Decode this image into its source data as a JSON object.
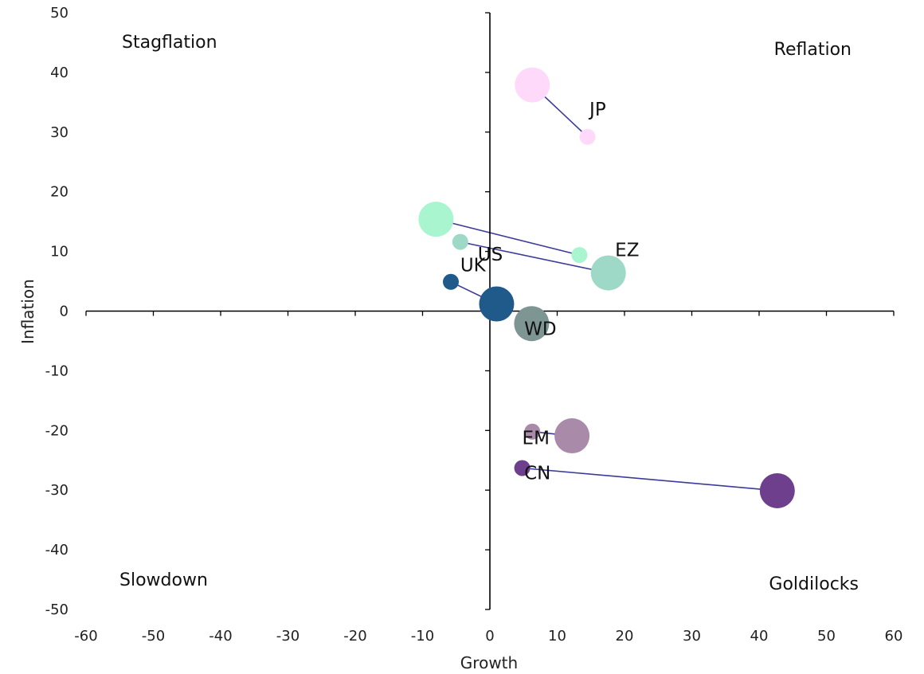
{
  "chart_data": {
    "type": "scatter",
    "subtype": "bubble-trajectory",
    "xlabel": "Growth",
    "ylabel": "Inflation",
    "xlim": [
      -60,
      60
    ],
    "ylim": [
      -50,
      50
    ],
    "xticks": [
      -60,
      -50,
      -40,
      -30,
      -20,
      -10,
      0,
      10,
      20,
      30,
      40,
      50,
      60
    ],
    "yticks": [
      -50,
      -40,
      -30,
      -20,
      -10,
      0,
      10,
      20,
      30,
      40,
      50
    ],
    "grid": false,
    "connector_color": "#3b3b9a",
    "quadrant_labels": [
      {
        "text": "Stagflation",
        "position": "top-left"
      },
      {
        "text": "Reflation",
        "position": "top-right"
      },
      {
        "text": "Slowdown",
        "position": "bottom-left"
      },
      {
        "text": "Goldilocks",
        "position": "bottom-right"
      }
    ],
    "series": [
      {
        "name": "JP",
        "color": "#ffd9fa",
        "points": [
          {
            "x": 6.3,
            "y": 37.9,
            "size": "large"
          },
          {
            "x": 14.5,
            "y": 29.2,
            "size": "small"
          }
        ]
      },
      {
        "name": "EZ",
        "color": "#a8f5d0",
        "points": [
          {
            "x": -8.0,
            "y": 15.4,
            "size": "large"
          },
          {
            "x": 13.3,
            "y": 9.4,
            "size": "small"
          }
        ]
      },
      {
        "name": "US",
        "color": "#9dd9c6",
        "points": [
          {
            "x": -4.4,
            "y": 11.6,
            "size": "small"
          },
          {
            "x": 17.6,
            "y": 6.4,
            "size": "large"
          }
        ]
      },
      {
        "name": "UK",
        "color": "#1f5a8a",
        "points": [
          {
            "x": -5.8,
            "y": 4.9,
            "size": "small"
          },
          {
            "x": 1.0,
            "y": 1.2,
            "size": "large"
          }
        ]
      },
      {
        "name": "WD",
        "color": "#7d9593",
        "points": [
          {
            "x": 6.2,
            "y": -2.1,
            "size": "large"
          }
        ]
      },
      {
        "name": "EM",
        "color": "#a98aa8",
        "points": [
          {
            "x": 6.3,
            "y": -20.2,
            "size": "small"
          },
          {
            "x": 12.2,
            "y": -20.9,
            "size": "large"
          }
        ]
      },
      {
        "name": "CN",
        "color": "#6e3f8c",
        "points": [
          {
            "x": 4.8,
            "y": -26.3,
            "size": "small"
          },
          {
            "x": 42.7,
            "y": -30.1,
            "size": "large"
          }
        ]
      }
    ],
    "labels": [
      {
        "text": "JP",
        "x": 14.8,
        "y": 32.8
      },
      {
        "text": "EZ",
        "x": 18.6,
        "y": 9.2
      },
      {
        "text": "US",
        "x": -1.8,
        "y": 8.5
      },
      {
        "text": "UK",
        "x": -4.4,
        "y": 6.7
      },
      {
        "text": "WD",
        "x": 5.1,
        "y": -4.0
      },
      {
        "text": "EM",
        "x": 4.8,
        "y": -22.3
      },
      {
        "text": "CN",
        "x": 5.1,
        "y": -28.2
      }
    ]
  }
}
